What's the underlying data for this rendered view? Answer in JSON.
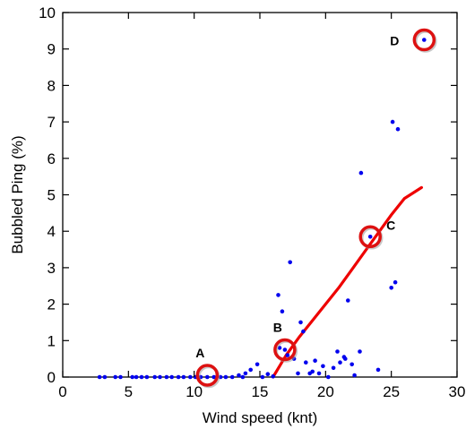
{
  "chart_data": {
    "type": "scatter",
    "xlabel": "Wind speed (knt)",
    "ylabel": "Bubbled Ping (%)",
    "xlim": [
      0,
      30
    ],
    "ylim": [
      0,
      10
    ],
    "xticks": [
      "0",
      "5",
      "10",
      "15",
      "20",
      "25",
      "30"
    ],
    "yticks": [
      "0",
      "1",
      "2",
      "3",
      "4",
      "5",
      "6",
      "7",
      "8",
      "9",
      "10"
    ],
    "grid": false,
    "colors": {
      "points": "#0000ee",
      "curve": "#ee0000",
      "circles": "#dd1111"
    },
    "points": [
      [
        2.8,
        0
      ],
      [
        3.2,
        0
      ],
      [
        4.0,
        0
      ],
      [
        4.4,
        0
      ],
      [
        5.3,
        0
      ],
      [
        5.6,
        0
      ],
      [
        6.0,
        0
      ],
      [
        6.4,
        0
      ],
      [
        7.0,
        0
      ],
      [
        7.4,
        0
      ],
      [
        7.9,
        0
      ],
      [
        8.3,
        0
      ],
      [
        8.8,
        0
      ],
      [
        9.2,
        0
      ],
      [
        9.7,
        0
      ],
      [
        10.1,
        0
      ],
      [
        10.5,
        0
      ],
      [
        11.0,
        0
      ],
      [
        11.5,
        0
      ],
      [
        12.0,
        0
      ],
      [
        12.4,
        0
      ],
      [
        12.9,
        0
      ],
      [
        13.4,
        0.05
      ],
      [
        13.7,
        0
      ],
      [
        13.9,
        0.1
      ],
      [
        14.3,
        0.2
      ],
      [
        14.8,
        0.35
      ],
      [
        15.2,
        0
      ],
      [
        15.6,
        0.08
      ],
      [
        16.0,
        0.02
      ],
      [
        16.4,
        2.25
      ],
      [
        16.5,
        0.8
      ],
      [
        16.7,
        1.8
      ],
      [
        16.9,
        0.75
      ],
      [
        17.1,
        0.6
      ],
      [
        17.3,
        3.15
      ],
      [
        17.6,
        0.5
      ],
      [
        17.9,
        0.1
      ],
      [
        18.1,
        1.5
      ],
      [
        18.3,
        1.25
      ],
      [
        18.5,
        0.4
      ],
      [
        18.8,
        0.1
      ],
      [
        19.0,
        0.15
      ],
      [
        19.2,
        0.45
      ],
      [
        19.5,
        0.1
      ],
      [
        19.8,
        0.3
      ],
      [
        20.2,
        0
      ],
      [
        20.6,
        0.25
      ],
      [
        20.9,
        0.7
      ],
      [
        21.1,
        0.4
      ],
      [
        21.4,
        0.55
      ],
      [
        21.5,
        0.5
      ],
      [
        21.7,
        2.1
      ],
      [
        22.0,
        0.35
      ],
      [
        22.2,
        0.05
      ],
      [
        22.6,
        0.7
      ],
      [
        22.7,
        5.6
      ],
      [
        23.4,
        3.85
      ],
      [
        24.0,
        0.2
      ],
      [
        25.0,
        2.45
      ],
      [
        25.1,
        7.0
      ],
      [
        25.3,
        2.6
      ],
      [
        25.5,
        6.8
      ],
      [
        27.5,
        9.25
      ]
    ],
    "fit_curve": [
      [
        16.0,
        0
      ],
      [
        17.0,
        0.6
      ],
      [
        18.0,
        1.1
      ],
      [
        19.0,
        1.55
      ],
      [
        20.0,
        2.0
      ],
      [
        21.0,
        2.45
      ],
      [
        22.0,
        2.95
      ],
      [
        23.0,
        3.45
      ],
      [
        24.0,
        3.95
      ],
      [
        25.0,
        4.45
      ],
      [
        26.0,
        4.9
      ],
      [
        27.3,
        5.2
      ]
    ],
    "annotations": [
      {
        "label": "A",
        "x": 11.0,
        "y": 0.05
      },
      {
        "label": "B",
        "x": 16.9,
        "y": 0.75
      },
      {
        "label": "C",
        "x": 23.4,
        "y": 3.85
      },
      {
        "label": "D",
        "x": 27.5,
        "y": 9.25
      }
    ]
  }
}
